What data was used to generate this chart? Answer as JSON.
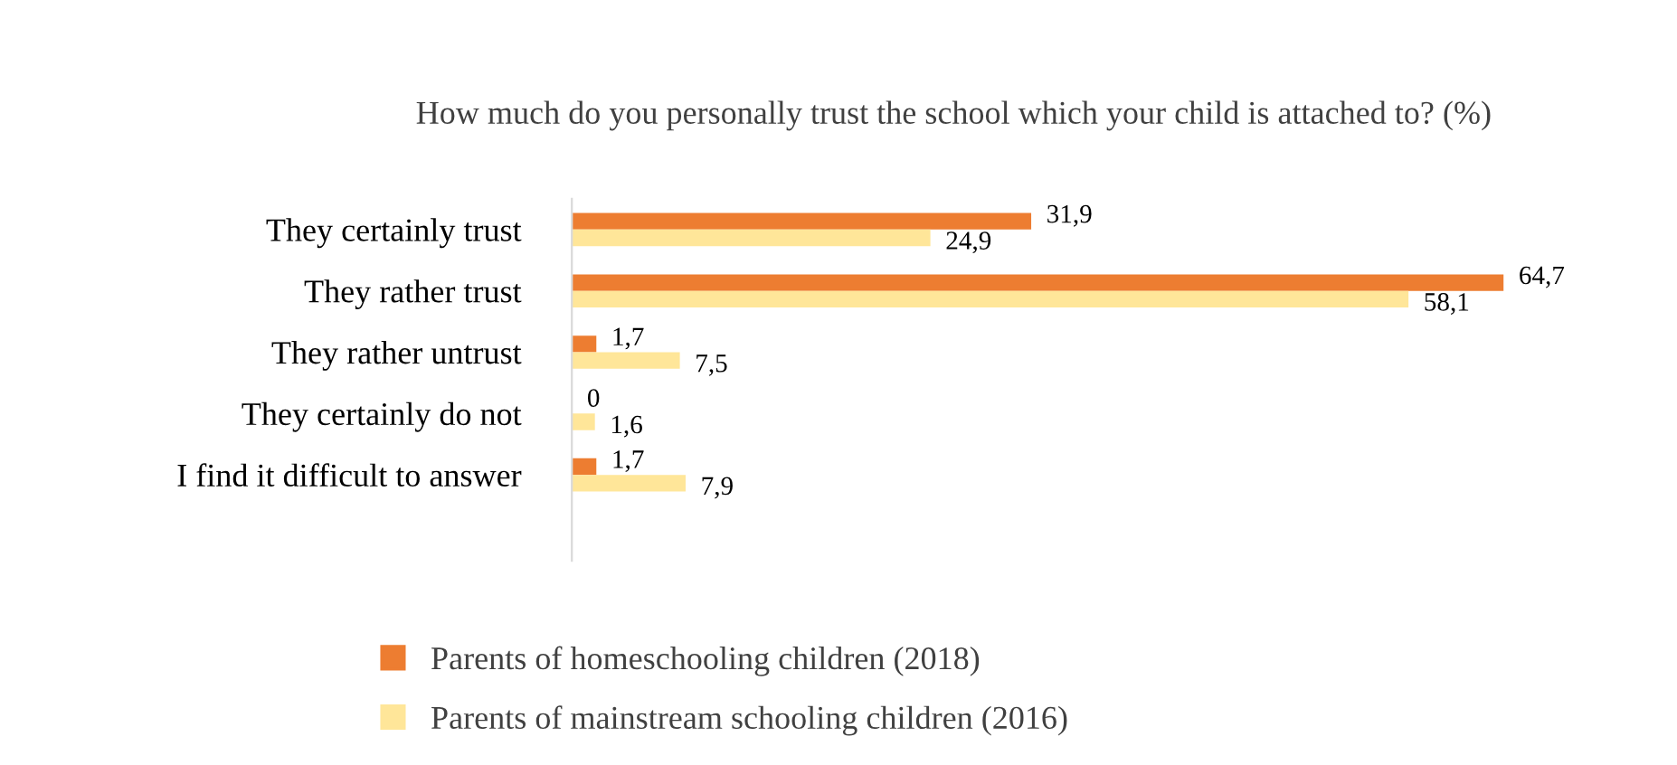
{
  "chart_data": {
    "type": "bar",
    "orientation": "horizontal",
    "title": "How much do you personally trust the school which your child is attached to? (%)",
    "categories": [
      "They certainly trust",
      "They rather trust",
      "They rather untrust",
      "They certainly do not",
      "I find it difficult to answer"
    ],
    "series": [
      {
        "name": "Parents of homeschooling children (2018)",
        "color": "#ed7d31",
        "values": [
          31.9,
          64.7,
          1.7,
          0,
          1.7
        ],
        "value_labels": [
          "31,9",
          "64,7",
          "1,7",
          "0",
          "1,7"
        ]
      },
      {
        "name": "Parents of mainstream schooling children (2016)",
        "color": "#ffe699",
        "values": [
          24.9,
          58.1,
          7.5,
          1.6,
          7.9
        ],
        "value_labels": [
          "24,9",
          "58,1",
          "7,5",
          "1,6",
          "7,9"
        ]
      }
    ],
    "legend": "bottom",
    "grid": false
  }
}
